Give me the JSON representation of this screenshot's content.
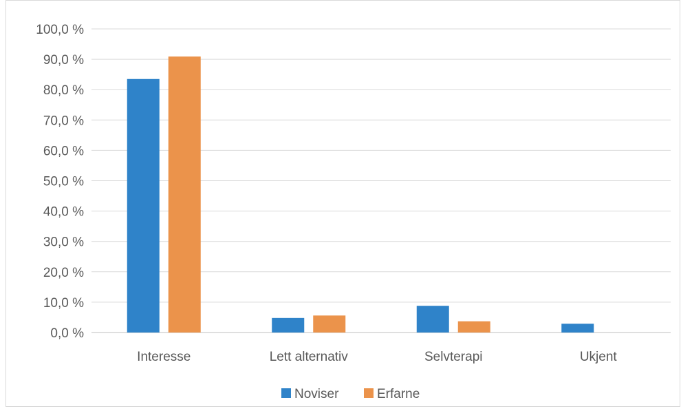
{
  "chart_data": {
    "type": "bar",
    "categories": [
      "Interesse",
      "Lett alternativ",
      "Selvterapi",
      "Ukjent"
    ],
    "series": [
      {
        "name": "Noviser",
        "values": [
          83.5,
          4.8,
          8.8,
          2.9
        ],
        "color": "#2f83c9"
      },
      {
        "name": "Erfarne",
        "values": [
          90.9,
          5.6,
          3.7,
          0.0
        ],
        "color": "#eb934b"
      }
    ],
    "ylim": [
      0,
      100
    ],
    "yticks": [
      "0,0 %",
      "10,0 %",
      "20,0 %",
      "30,0 %",
      "40,0 %",
      "50,0 %",
      "60,0 %",
      "70,0 %",
      "80,0 %",
      "90,0 %",
      "100,0 %"
    ],
    "grid": true,
    "legend_position": "bottom"
  }
}
